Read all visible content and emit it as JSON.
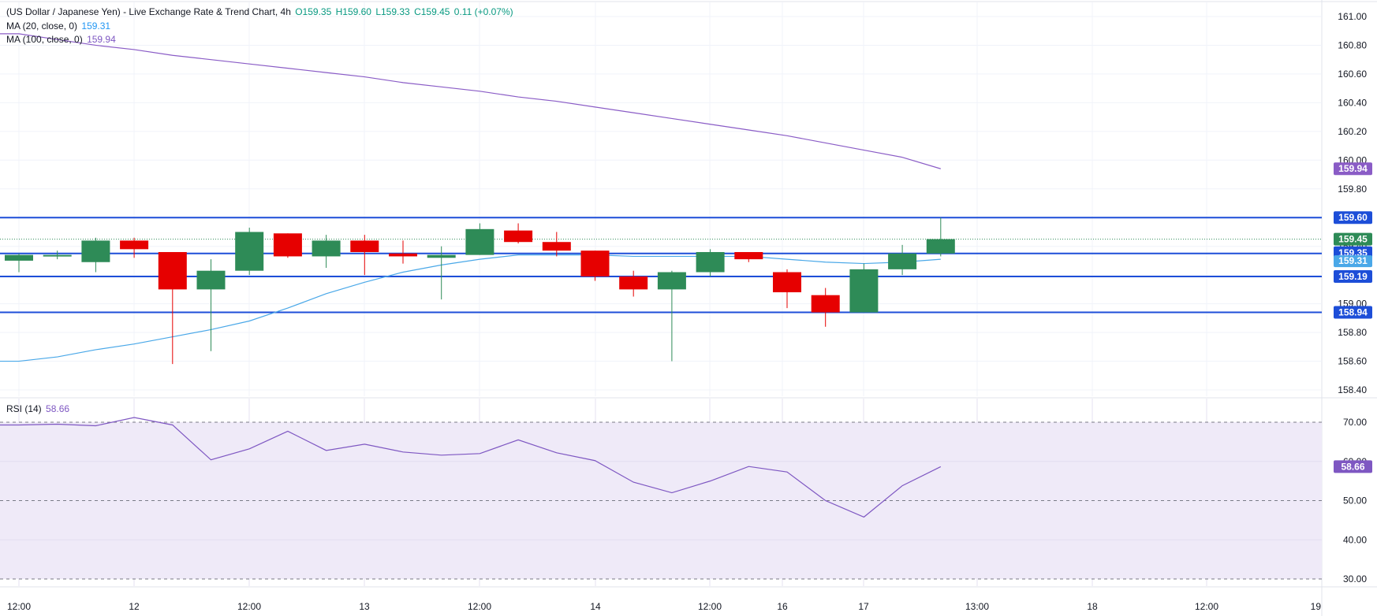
{
  "header": {
    "title": "(US Dollar / Japanese Yen) - Live Exchange Rate & Trend Chart, 4h",
    "open": "O159.35",
    "high": "H159.60",
    "low": "L159.33",
    "close": "C159.45",
    "change": "0.11 (+0.07%)"
  },
  "indicators": {
    "ma20_label": "MA (20, close, 0)",
    "ma20_value": "159.31",
    "ma100_label": "MA (100, close, 0)",
    "ma100_value": "159.94",
    "rsi_label": "RSI (14)",
    "rsi_value": "58.66"
  },
  "colors": {
    "up": "#2e8b57",
    "down": "#e60000",
    "ma20": "#4aa8e8",
    "ma100": "#8a5cc6",
    "level": "#1d4ed8",
    "rsi": "#7e57c2",
    "rsi_band": "#efeaf8",
    "price_tag": "#2e8b57"
  },
  "chart_data": [
    {
      "type": "candlestick",
      "symbol": "USD/JPY",
      "timeframe": "4h",
      "ylim": [
        158.4,
        161.0
      ],
      "y_ticks": [
        "161.00",
        "160.80",
        "160.60",
        "160.40",
        "160.20",
        "160.00",
        "159.80",
        "159.60",
        "159.40",
        "159.20",
        "159.00",
        "158.80",
        "158.60",
        "158.40"
      ],
      "x_ticks": [
        "12:00",
        "12",
        "12:00",
        "13",
        "12:00",
        "14",
        "12:00",
        "16",
        "17",
        "13:00",
        "18",
        "12:00",
        "19"
      ],
      "candles": [
        {
          "o": 159.3,
          "h": 159.35,
          "l": 159.22,
          "c": 159.34
        },
        {
          "o": 159.33,
          "h": 159.37,
          "l": 159.31,
          "c": 159.34
        },
        {
          "o": 159.29,
          "h": 159.46,
          "l": 159.22,
          "c": 159.44
        },
        {
          "o": 159.44,
          "h": 159.46,
          "l": 159.32,
          "c": 159.38
        },
        {
          "o": 159.36,
          "h": 159.36,
          "l": 158.58,
          "c": 159.1
        },
        {
          "o": 159.1,
          "h": 159.31,
          "l": 158.67,
          "c": 159.23
        },
        {
          "o": 159.23,
          "h": 159.53,
          "l": 159.2,
          "c": 159.5
        },
        {
          "o": 159.49,
          "h": 159.49,
          "l": 159.32,
          "c": 159.33
        },
        {
          "o": 159.33,
          "h": 159.48,
          "l": 159.25,
          "c": 159.44
        },
        {
          "o": 159.44,
          "h": 159.48,
          "l": 159.2,
          "c": 159.36
        },
        {
          "o": 159.35,
          "h": 159.44,
          "l": 159.28,
          "c": 159.33
        },
        {
          "o": 159.32,
          "h": 159.4,
          "l": 159.03,
          "c": 159.34
        },
        {
          "o": 159.34,
          "h": 159.56,
          "l": 159.34,
          "c": 159.52
        },
        {
          "o": 159.51,
          "h": 159.56,
          "l": 159.42,
          "c": 159.43
        },
        {
          "o": 159.43,
          "h": 159.5,
          "l": 159.33,
          "c": 159.37
        },
        {
          "o": 159.37,
          "h": 159.37,
          "l": 159.16,
          "c": 159.19
        },
        {
          "o": 159.19,
          "h": 159.23,
          "l": 159.05,
          "c": 159.1
        },
        {
          "o": 159.1,
          "h": 159.23,
          "l": 158.6,
          "c": 159.22
        },
        {
          "o": 159.22,
          "h": 159.38,
          "l": 159.19,
          "c": 159.36
        },
        {
          "o": 159.36,
          "h": 159.36,
          "l": 159.29,
          "c": 159.31
        },
        {
          "o": 159.22,
          "h": 159.24,
          "l": 158.97,
          "c": 159.08
        },
        {
          "o": 159.06,
          "h": 159.11,
          "l": 158.84,
          "c": 158.94
        },
        {
          "o": 158.94,
          "h": 159.28,
          "l": 158.94,
          "c": 159.24
        },
        {
          "o": 159.24,
          "h": 159.41,
          "l": 159.2,
          "c": 159.35
        },
        {
          "o": 159.35,
          "h": 159.6,
          "l": 159.33,
          "c": 159.45
        }
      ],
      "ma20": [
        158.6,
        158.63,
        158.68,
        158.72,
        158.77,
        158.82,
        158.88,
        158.97,
        159.07,
        159.15,
        159.22,
        159.27,
        159.31,
        159.34,
        159.34,
        159.34,
        159.33,
        159.33,
        159.33,
        159.33,
        159.31,
        159.29,
        159.28,
        159.29,
        159.31
      ],
      "ma100": [
        160.88,
        160.84,
        160.8,
        160.77,
        160.73,
        160.7,
        160.67,
        160.64,
        160.61,
        160.58,
        160.54,
        160.51,
        160.48,
        160.44,
        160.41,
        160.37,
        160.33,
        160.29,
        160.25,
        160.21,
        160.17,
        160.12,
        160.07,
        160.02,
        159.94
      ],
      "levels": [
        {
          "value": 159.6,
          "label": "159.60"
        },
        {
          "value": 159.35,
          "label": "159.35"
        },
        {
          "value": 159.19,
          "label": "159.19"
        },
        {
          "value": 158.94,
          "label": "158.94"
        }
      ],
      "last_price": {
        "value": 159.45,
        "label": "159.45"
      },
      "price_tags": [
        {
          "value": 159.94,
          "label": "159.94",
          "kind": "ma100"
        },
        {
          "value": 159.31,
          "label": "159.31",
          "kind": "ma20"
        }
      ]
    },
    {
      "type": "line",
      "name": "RSI (14)",
      "ylim": [
        27,
        72
      ],
      "y_ticks": [
        "70.00",
        "60.00",
        "50.00",
        "40.00",
        "30.00"
      ],
      "band": [
        30,
        70
      ],
      "values": [
        69.3,
        69.5,
        69.1,
        71.2,
        69.3,
        60.4,
        63.2,
        67.7,
        62.8,
        64.4,
        62.4,
        61.6,
        62.0,
        65.5,
        62.2,
        60.2,
        54.7,
        52.0,
        55.0,
        58.7,
        57.3,
        50.0,
        45.8,
        53.8,
        58.66
      ],
      "last_label": "58.66"
    }
  ]
}
